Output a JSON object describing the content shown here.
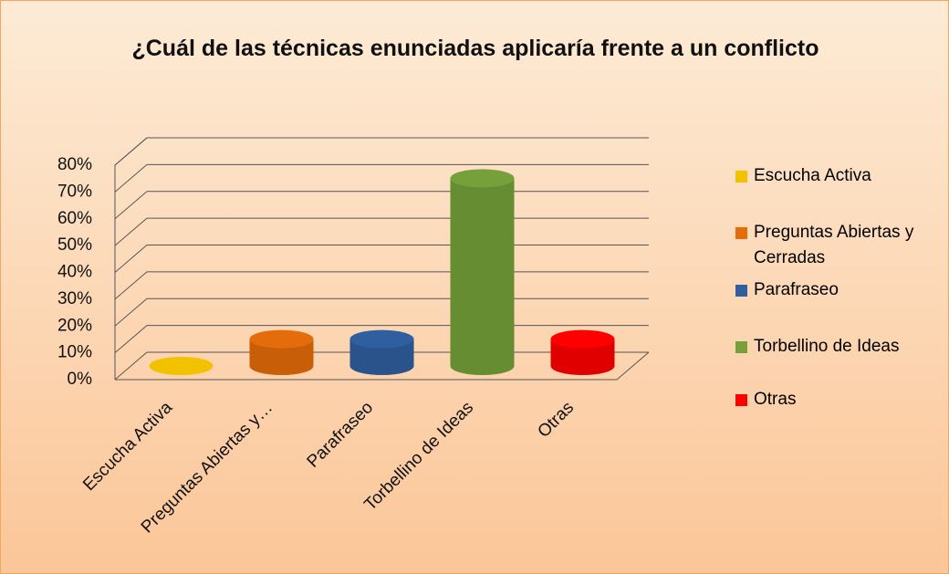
{
  "chart_data": {
    "type": "bar3d",
    "title": "¿Cuál de las técnicas enunciadas aplicaría frente a un conflicto",
    "categories": [
      "Escucha  Activa",
      "Preguntas Abiertas y…",
      "Parafraseo",
      "Torbellino de Ideas",
      "Otras"
    ],
    "values": [
      0,
      10,
      10,
      70,
      10
    ],
    "colors": [
      "#f2c200",
      "#e46c0a",
      "#2f5f9e",
      "#76a13a",
      "#ff0000"
    ],
    "legend": [
      {
        "name": "Escucha  Activa",
        "color": "#f2c200"
      },
      {
        "name": "Preguntas Abiertas y Cerradas",
        "color": "#e46c0a"
      },
      {
        "name": "Parafraseo",
        "color": "#2f5f9e"
      },
      {
        "name": "Torbellino de Ideas",
        "color": "#76a13a"
      },
      {
        "name": "Otras",
        "color": "#ff0000"
      }
    ],
    "ylim": [
      0,
      80
    ],
    "yticks": [
      {
        "value": 0,
        "label": "0%"
      },
      {
        "value": 10,
        "label": "10%"
      },
      {
        "value": 20,
        "label": "20%"
      },
      {
        "value": 30,
        "label": "30%"
      },
      {
        "value": 40,
        "label": "40%"
      },
      {
        "value": 50,
        "label": "50%"
      },
      {
        "value": 60,
        "label": "60%"
      },
      {
        "value": 70,
        "label": "70%"
      },
      {
        "value": 80,
        "label": "80%"
      }
    ],
    "grid": true,
    "legend_position": "right"
  }
}
